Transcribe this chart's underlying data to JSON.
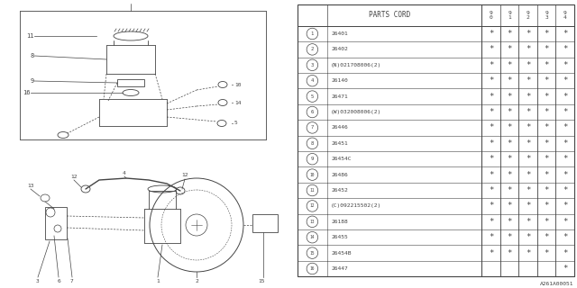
{
  "bg_color": "#ffffff",
  "ec": "#444444",
  "parts": [
    {
      "num": 1,
      "code": "26401",
      "cols": [
        true,
        true,
        true,
        true,
        true
      ]
    },
    {
      "num": 2,
      "code": "26402",
      "cols": [
        true,
        true,
        true,
        true,
        true
      ]
    },
    {
      "num": 3,
      "code": "(N)021708006(2)",
      "cols": [
        true,
        true,
        true,
        true,
        true
      ]
    },
    {
      "num": 4,
      "code": "26140",
      "cols": [
        true,
        true,
        true,
        true,
        true
      ]
    },
    {
      "num": 5,
      "code": "26471",
      "cols": [
        true,
        true,
        true,
        true,
        true
      ]
    },
    {
      "num": 6,
      "code": "(W)032008006(2)",
      "cols": [
        true,
        true,
        true,
        true,
        true
      ]
    },
    {
      "num": 7,
      "code": "26446",
      "cols": [
        true,
        true,
        true,
        true,
        true
      ]
    },
    {
      "num": 8,
      "code": "26451",
      "cols": [
        true,
        true,
        true,
        true,
        true
      ]
    },
    {
      "num": 9,
      "code": "26454C",
      "cols": [
        true,
        true,
        true,
        true,
        true
      ]
    },
    {
      "num": 10,
      "code": "26486",
      "cols": [
        true,
        true,
        true,
        true,
        true
      ]
    },
    {
      "num": 11,
      "code": "26452",
      "cols": [
        true,
        true,
        true,
        true,
        true
      ]
    },
    {
      "num": 12,
      "code": "(C)092215502(2)",
      "cols": [
        true,
        true,
        true,
        true,
        true
      ]
    },
    {
      "num": 13,
      "code": "26188",
      "cols": [
        true,
        true,
        true,
        true,
        true
      ]
    },
    {
      "num": 14,
      "code": "26455",
      "cols": [
        true,
        true,
        true,
        true,
        true
      ]
    },
    {
      "num": 15,
      "code": "26454B",
      "cols": [
        true,
        true,
        true,
        true,
        true
      ]
    },
    {
      "num": 16,
      "code": "26447",
      "cols": [
        false,
        false,
        false,
        false,
        true
      ]
    }
  ],
  "col_headers": [
    "9\n0",
    "9\n1",
    "9\n2",
    "9\n3",
    "9\n4"
  ],
  "footnote": "A261A00051",
  "diagram_split": 0.5
}
